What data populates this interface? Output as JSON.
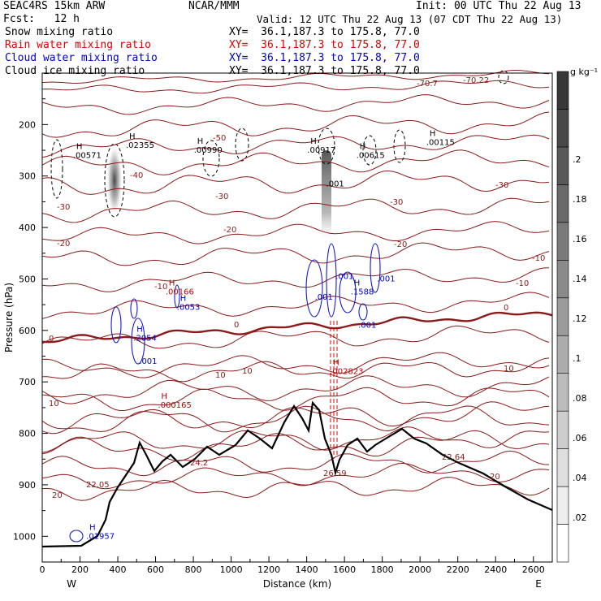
{
  "header": {
    "model": "SEAC4RS 15km ARW",
    "fcst": "Fcst:   12 h",
    "org": "NCAR/MMM",
    "init": "Init: 00 UTC Thu 22 Aug 13",
    "valid": "Valid: 12 UTC Thu 22 Aug 13 (07 CDT Thu 22 Aug 13)",
    "fields": [
      {
        "name": "Snow mixing ratio",
        "xy": "XY=  36.1,187.3 to 175.8, 77.0",
        "color": "#000000"
      },
      {
        "name": "Rain water mixing ratio",
        "xy": "XY=  36.1,187.3 to 175.8, 77.0",
        "color": "#e00000"
      },
      {
        "name": "Cloud water mixing ratio",
        "xy": "XY=  36.1,187.3 to 175.8, 77.0",
        "color": "#0000d0"
      },
      {
        "name": "Cloud ice mixing ratio",
        "xy": "XY=  36.1,187.3 to 175.8, 77.0",
        "color": "#000000"
      }
    ]
  },
  "chart_data": {
    "type": "cross-section",
    "xlabel": "Distance (km)",
    "ylabel": "Pressure (hPa)",
    "xlim": [
      0,
      2700
    ],
    "ylim": [
      1050,
      100
    ],
    "x_ticks": [
      0,
      200,
      400,
      600,
      800,
      1000,
      1200,
      1400,
      1600,
      1800,
      2000,
      2200,
      2400,
      2600
    ],
    "y_ticks": [
      200,
      300,
      400,
      500,
      600,
      700,
      800,
      900,
      1000
    ],
    "end_labels": {
      "left": "W",
      "right": "E"
    },
    "colorbar": {
      "unit": "g kg⁻¹",
      "ticks": [
        ".02",
        ".04",
        ".06",
        ".08",
        ".1",
        ".12",
        ".14",
        ".16",
        ".18",
        ".2"
      ],
      "levels": 13
    },
    "temperature_contour_labels": [
      "-70.7",
      "-70.22",
      "-50",
      "-40",
      "-30",
      "-20",
      "-10",
      "0",
      "10",
      "20",
      "22.05",
      "24.2",
      "26.59",
      "22.64"
    ],
    "max_labels": [
      {
        "text": "H",
        "value": ".00571",
        "x": 180,
        "p": 265,
        "color": "#000000"
      },
      {
        "text": "H",
        "value": ".02355",
        "x": 460,
        "p": 245,
        "color": "#000000"
      },
      {
        "text": "H",
        "value": ".00990",
        "x": 820,
        "p": 255,
        "color": "#000000"
      },
      {
        "text": "H",
        "value": ".00917",
        "x": 1420,
        "p": 255,
        "color": "#000000"
      },
      {
        "text": "H",
        "value": ".00615",
        "x": 1680,
        "p": 265,
        "color": "#000000"
      },
      {
        "text": "H",
        "value": ".00115",
        "x": 2050,
        "p": 240,
        "color": "#000000"
      },
      {
        "text": "",
        "value": ".001",
        "x": 1520,
        "p": 320,
        "color": "#000000"
      },
      {
        "text": "H",
        "value": ".00166",
        "x": 670,
        "p": 530,
        "color": "#c00000"
      },
      {
        "text": "H",
        "value": ".0053",
        "x": 730,
        "p": 560,
        "color": "#0000d0"
      },
      {
        "text": "H",
        "value": ".2054",
        "x": 500,
        "p": 620,
        "color": "#0000d0"
      },
      {
        "text": "",
        "value": ".001",
        "x": 530,
        "p": 665,
        "color": "#0000d0"
      },
      {
        "text": "",
        "value": ".001",
        "x": 1460,
        "p": 540,
        "color": "#0000d0"
      },
      {
        "text": "",
        "value": ".001",
        "x": 1570,
        "p": 500,
        "color": "#0000d0"
      },
      {
        "text": "H",
        "value": ".1588",
        "x": 1650,
        "p": 530,
        "color": "#0000d0"
      },
      {
        "text": "",
        "value": ".001",
        "x": 1790,
        "p": 505,
        "color": "#0000d0"
      },
      {
        "text": "",
        "value": ".001",
        "x": 1690,
        "p": 595,
        "color": "#0000d0"
      },
      {
        "text": "H",
        "value": ".002823",
        "x": 1540,
        "p": 685,
        "color": "#c00000"
      },
      {
        "text": "H",
        "value": ".000165",
        "x": 630,
        "p": 750,
        "color": "#c00000"
      },
      {
        "text": "H",
        "value": ".01957",
        "x": 250,
        "p": 1005,
        "color": "#0000d0"
      }
    ]
  }
}
